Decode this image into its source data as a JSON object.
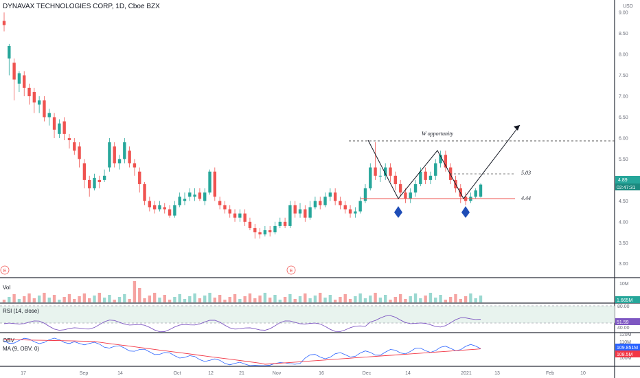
{
  "header": {
    "title": "DYNAVAX TECHNOLOGIES CORP, 1D, Cboe BZX",
    "currency": "USD"
  },
  "price_axis": {
    "ticks": [
      "9.00",
      "8.50",
      "8.00",
      "7.50",
      "7.00",
      "6.50",
      "6.00",
      "5.50",
      "5.00",
      "4.50",
      "4.00",
      "3.50",
      "3.00"
    ]
  },
  "badges": {
    "last_price": "4.89",
    "countdown": "02:47:31",
    "volume": "1.665M",
    "rsi": "51.59",
    "obv": "109.851M",
    "obv_ma": "108.5M"
  },
  "annotations": {
    "w_label": "W opportunity",
    "level_high": "5.03",
    "level_low": "4.44",
    "earnings_marker": "E"
  },
  "panes": {
    "volume_label": "Vol",
    "volume_axis": "10M",
    "rsi_label": "RSI (14, close)",
    "rsi_axis": [
      "80.00",
      "40.00"
    ],
    "obv_label": "OBV",
    "obv_ma_label": "MA (9, OBV, 0)",
    "obv_axis": [
      "120M",
      "110M",
      "100M"
    ]
  },
  "time_axis": [
    "17",
    "Sep",
    "14",
    "Oct",
    "12",
    "21",
    "Nov",
    "16",
    "Dec",
    "14",
    "2021",
    "13",
    "Feb",
    "10"
  ],
  "chart_data": {
    "type": "candlestick",
    "title": "DYNAVAX TECHNOLOGIES CORP, 1D, Cboe BZX",
    "ylabel": "USD",
    "ylim": [
      2.7,
      9.2
    ],
    "candles": [
      [
        8.8,
        8.7,
        9.0,
        8.55
      ],
      [
        7.9,
        8.2,
        8.25,
        7.5
      ],
      [
        7.8,
        7.4,
        7.9,
        6.9
      ],
      [
        7.3,
        7.55,
        7.6,
        7.1
      ],
      [
        7.5,
        7.2,
        7.6,
        7.0
      ],
      [
        7.2,
        7.0,
        7.3,
        6.8
      ],
      [
        7.1,
        6.85,
        7.2,
        6.6
      ],
      [
        6.8,
        6.9,
        7.0,
        6.6
      ],
      [
        6.9,
        6.5,
        7.0,
        6.4
      ],
      [
        6.5,
        6.6,
        6.7,
        6.3
      ],
      [
        6.5,
        6.2,
        6.6,
        6.0
      ],
      [
        6.1,
        6.35,
        6.45,
        6.0
      ],
      [
        6.4,
        6.1,
        6.5,
        5.95
      ],
      [
        6.0,
        5.95,
        6.1,
        5.75
      ],
      [
        5.9,
        5.7,
        6.0,
        5.6
      ],
      [
        5.8,
        5.5,
        5.9,
        5.3
      ],
      [
        5.4,
        5.0,
        5.5,
        4.8
      ],
      [
        5.0,
        4.8,
        5.1,
        4.6
      ],
      [
        4.8,
        5.05,
        5.15,
        4.75
      ],
      [
        5.0,
        4.95,
        5.1,
        4.8
      ],
      [
        5.0,
        5.1,
        5.25,
        4.95
      ],
      [
        5.3,
        5.9,
        6.0,
        5.2
      ],
      [
        5.8,
        5.4,
        5.9,
        5.3
      ],
      [
        5.4,
        5.5,
        5.6,
        5.25
      ],
      [
        5.5,
        5.9,
        6.0,
        5.4
      ],
      [
        5.7,
        5.4,
        5.8,
        5.3
      ],
      [
        5.4,
        5.3,
        5.5,
        5.1
      ],
      [
        5.2,
        4.9,
        5.3,
        4.7
      ],
      [
        4.9,
        4.5,
        4.95,
        4.4
      ],
      [
        4.5,
        4.35,
        4.6,
        4.25
      ],
      [
        4.4,
        4.3,
        4.5,
        4.2
      ],
      [
        4.3,
        4.4,
        4.5,
        4.25
      ],
      [
        4.35,
        4.3,
        4.45,
        4.2
      ],
      [
        4.3,
        4.15,
        4.4,
        4.1
      ],
      [
        4.15,
        4.4,
        4.5,
        4.1
      ],
      [
        4.4,
        4.6,
        4.7,
        4.35
      ],
      [
        4.5,
        4.55,
        4.7,
        4.4
      ],
      [
        4.6,
        4.7,
        4.8,
        4.5
      ],
      [
        4.6,
        4.65,
        4.8,
        4.5
      ],
      [
        4.7,
        4.55,
        4.8,
        4.5
      ],
      [
        4.5,
        4.7,
        4.8,
        4.4
      ],
      [
        4.7,
        5.2,
        5.25,
        4.65
      ],
      [
        5.2,
        4.6,
        5.3,
        4.5
      ],
      [
        4.5,
        4.4,
        4.6,
        4.3
      ],
      [
        4.4,
        4.3,
        4.5,
        4.2
      ],
      [
        4.3,
        4.2,
        4.4,
        4.1
      ],
      [
        4.2,
        4.1,
        4.3,
        4.0
      ],
      [
        4.1,
        4.2,
        4.3,
        4.0
      ],
      [
        4.2,
        4.0,
        4.3,
        3.9
      ],
      [
        4.0,
        3.85,
        4.1,
        3.8
      ],
      [
        3.85,
        3.75,
        3.95,
        3.6
      ],
      [
        3.75,
        3.7,
        3.85,
        3.6
      ],
      [
        3.7,
        3.8,
        3.9,
        3.65
      ],
      [
        3.8,
        3.75,
        3.9,
        3.65
      ],
      [
        3.75,
        3.9,
        4.0,
        3.7
      ],
      [
        3.9,
        4.0,
        4.1,
        3.85
      ],
      [
        4.0,
        3.9,
        4.1,
        3.85
      ],
      [
        3.9,
        4.4,
        4.5,
        3.85
      ],
      [
        4.4,
        4.2,
        4.5,
        4.1
      ],
      [
        4.2,
        4.3,
        4.45,
        4.1
      ],
      [
        4.3,
        4.1,
        4.4,
        4.0
      ],
      [
        4.1,
        4.35,
        4.5,
        4.05
      ],
      [
        4.35,
        4.5,
        4.6,
        4.3
      ],
      [
        4.5,
        4.4,
        4.6,
        4.3
      ],
      [
        4.4,
        4.6,
        4.7,
        4.35
      ],
      [
        4.6,
        4.7,
        4.8,
        4.5
      ],
      [
        4.7,
        4.5,
        4.8,
        4.4
      ],
      [
        4.5,
        4.4,
        4.6,
        4.3
      ],
      [
        4.4,
        4.3,
        4.5,
        4.2
      ],
      [
        4.3,
        4.2,
        4.4,
        4.1
      ],
      [
        4.2,
        4.25,
        4.35,
        4.1
      ],
      [
        4.25,
        4.5,
        4.6,
        4.2
      ],
      [
        4.5,
        4.8,
        4.9,
        4.45
      ],
      [
        4.8,
        5.3,
        5.4,
        4.75
      ],
      [
        5.3,
        5.1,
        5.9,
        5.0
      ],
      [
        5.1,
        5.1,
        5.3,
        4.95
      ],
      [
        5.1,
        5.3,
        5.4,
        5.0
      ],
      [
        5.3,
        5.1,
        5.4,
        4.95
      ],
      [
        5.1,
        4.9,
        5.2,
        4.75
      ],
      [
        4.9,
        4.7,
        5.0,
        4.6
      ],
      [
        4.7,
        4.55,
        4.8,
        4.45
      ],
      [
        4.55,
        4.7,
        4.8,
        4.45
      ],
      [
        4.7,
        4.9,
        5.0,
        4.6
      ],
      [
        4.9,
        5.2,
        5.3,
        4.85
      ],
      [
        5.2,
        5.0,
        5.3,
        4.9
      ],
      [
        5.0,
        5.1,
        5.2,
        4.9
      ],
      [
        5.1,
        5.4,
        5.5,
        5.0
      ],
      [
        5.4,
        5.6,
        5.7,
        5.3
      ],
      [
        5.6,
        5.3,
        5.7,
        5.2
      ],
      [
        5.3,
        5.0,
        5.4,
        4.9
      ],
      [
        5.0,
        4.8,
        5.1,
        4.7
      ],
      [
        4.8,
        4.6,
        4.9,
        4.45
      ],
      [
        4.6,
        4.5,
        4.7,
        4.4
      ],
      [
        4.5,
        4.6,
        4.7,
        4.45
      ],
      [
        4.6,
        4.75,
        4.8,
        4.55
      ],
      [
        4.6,
        4.89,
        4.92,
        4.58
      ]
    ],
    "time_axis_labels": [
      "17",
      "Sep",
      "14",
      "Oct",
      "12",
      "21",
      "Nov",
      "16",
      "Dec",
      "14",
      "2021",
      "13",
      "Feb",
      "10"
    ],
    "annotations": [
      {
        "text": "W opportunity"
      },
      {
        "text": "5.03",
        "y": 5.03
      },
      {
        "text": "4.44",
        "y": 4.44
      },
      {
        "resistance_y": 5.85
      }
    ],
    "volume_pane": {
      "label": "Vol",
      "last": "1.665M"
    },
    "rsi_pane": {
      "label": "RSI (14, close)",
      "last": 51.59,
      "band": [
        40,
        80
      ]
    },
    "obv_pane": {
      "label": "OBV",
      "ma_label": "MA (9, OBV, 0)",
      "obv_last": "109.851M",
      "ma_last": "108.5M"
    },
    "colors": {
      "up": "#26a69a",
      "down": "#ef5350",
      "obv": "#2962ff",
      "obv_ma": "#f23645",
      "rsi": "#7e57c2",
      "marker": "#1e4db7"
    }
  }
}
